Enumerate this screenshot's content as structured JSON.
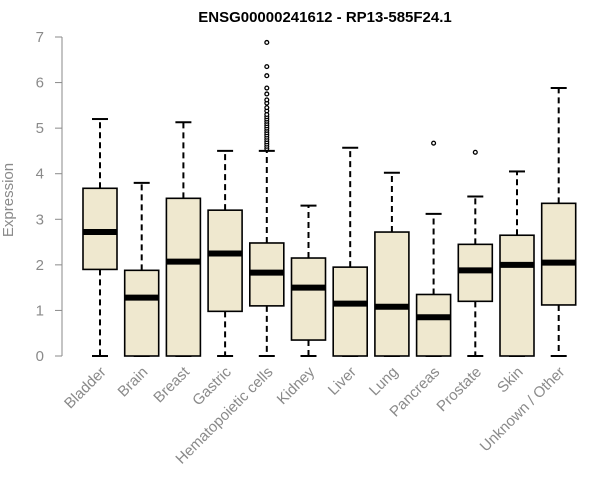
{
  "chart_data": {
    "type": "boxplot",
    "title": "ENSG00000241612 - RP13-585F24.1",
    "xlabel": "",
    "ylabel": "Expression",
    "ylim": [
      0,
      7
    ],
    "yticks": [
      "0",
      "1",
      "2",
      "3",
      "4",
      "5",
      "6",
      "7"
    ],
    "grid": false,
    "colors": {
      "box_fill": "#efe8cf",
      "box_stroke": "#000000",
      "axis": "#8a8a8a",
      "title": "#000000"
    },
    "categories": [
      "Bladder",
      "Brain",
      "Breast",
      "Gastric",
      "Hematopoietic cells",
      "Kidney",
      "Liver",
      "Lung",
      "Pancreas",
      "Prostate",
      "Skin",
      "Unknown / Other"
    ],
    "boxes": [
      {
        "name": "Bladder",
        "min": 0,
        "q1": 1.9,
        "median": 2.72,
        "q3": 3.68,
        "max": 5.2,
        "outliers": []
      },
      {
        "name": "Brain",
        "min": 0,
        "q1": 0,
        "median": 1.28,
        "q3": 1.88,
        "max": 3.8,
        "outliers": []
      },
      {
        "name": "Breast",
        "min": 0,
        "q1": 0,
        "median": 2.07,
        "q3": 3.46,
        "max": 5.13,
        "outliers": []
      },
      {
        "name": "Gastric",
        "min": 0,
        "q1": 0.98,
        "median": 2.25,
        "q3": 3.2,
        "max": 4.5,
        "outliers": []
      },
      {
        "name": "Hematopoietic cells",
        "min": 0,
        "q1": 1.1,
        "median": 1.83,
        "q3": 2.48,
        "max": 4.5,
        "outliers": [
          4.55,
          4.6,
          4.65,
          4.7,
          4.75,
          4.8,
          4.85,
          4.9,
          4.95,
          5.0,
          5.05,
          5.1,
          5.15,
          5.2,
          5.25,
          5.3,
          5.38,
          5.45,
          5.55,
          5.62,
          5.75,
          5.88,
          6.15,
          6.35,
          6.88
        ]
      },
      {
        "name": "Kidney",
        "min": 0,
        "q1": 0.35,
        "median": 1.5,
        "q3": 2.15,
        "max": 3.3,
        "outliers": []
      },
      {
        "name": "Liver",
        "min": 0,
        "q1": 0,
        "median": 1.15,
        "q3": 1.95,
        "max": 4.57,
        "outliers": []
      },
      {
        "name": "Lung",
        "min": 0,
        "q1": 0,
        "median": 1.08,
        "q3": 2.72,
        "max": 4.02,
        "outliers": []
      },
      {
        "name": "Pancreas",
        "min": 0,
        "q1": 0,
        "median": 0.85,
        "q3": 1.35,
        "max": 3.12,
        "outliers": [
          4.67
        ]
      },
      {
        "name": "Prostate",
        "min": 0,
        "q1": 1.2,
        "median": 1.88,
        "q3": 2.45,
        "max": 3.5,
        "outliers": [
          4.47
        ]
      },
      {
        "name": "Skin",
        "min": 0,
        "q1": 0,
        "median": 2.0,
        "q3": 2.65,
        "max": 4.05,
        "outliers": []
      },
      {
        "name": "Unknown / Other",
        "min": 0,
        "q1": 1.12,
        "median": 2.05,
        "q3": 3.35,
        "max": 5.88,
        "outliers": []
      }
    ]
  }
}
